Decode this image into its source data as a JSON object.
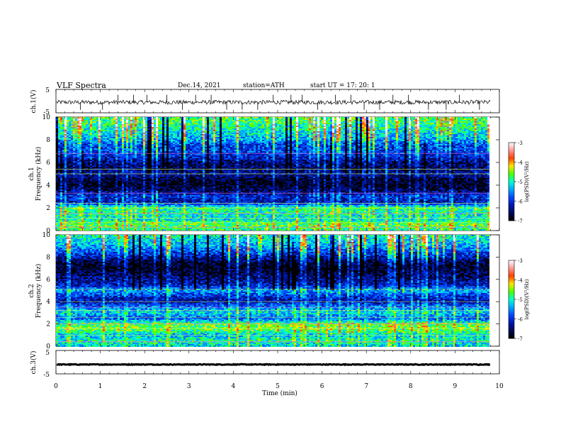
{
  "header": {
    "title": "VLF  Spectra",
    "date": "Dec.14, 2021",
    "station": "station=ATH",
    "start": "start  UT  =    17: 20: 1"
  },
  "colors": {
    "axis": "#000000",
    "trace": "#000000",
    "colormap": [
      "#000000",
      "#000a55",
      "#0016b0",
      "#0047ff",
      "#00a8ff",
      "#00ffd0",
      "#4cff00",
      "#ffe600",
      "#ff4000",
      "#ff9a9a",
      "#ffffff"
    ]
  },
  "chart_data": [
    {
      "type": "line",
      "ylabel": "ch.1(V)",
      "ylim": [
        -5,
        5
      ],
      "ytick_labels": [
        "5",
        "-5"
      ],
      "xlim": [
        0,
        10
      ],
      "baseline_value": -0.5,
      "spike_times_min": [
        0.55,
        1.05,
        1.4,
        1.75,
        2.05,
        2.5,
        2.85,
        3.15,
        3.5,
        3.85,
        4.2,
        4.55,
        4.9,
        5.3,
        5.55,
        5.9,
        6.3,
        6.65,
        6.95,
        7.3,
        7.6,
        7.95,
        8.4,
        8.8,
        9.1,
        9.55
      ]
    },
    {
      "type": "heatmap",
      "ylabel_line1": "ch.1",
      "ylabel_line2": "Frequency  (kHz)",
      "ylim": [
        0,
        10
      ],
      "ytick_labels": [
        "0",
        "2",
        "4",
        "6",
        "8",
        "10"
      ],
      "xlim": [
        0,
        10
      ],
      "data_end_min": 9.8,
      "colorbar_label": "log(PSD)(V²/Hz)",
      "colorbar_ticks": [
        "-3",
        "-4",
        "-5",
        "-6",
        "-7"
      ],
      "colorbar_range": [
        -7,
        -3
      ],
      "frequency_profile_khz": [
        [
          0.0,
          -5.0
        ],
        [
          0.5,
          -4.6
        ],
        [
          1.0,
          -5.2
        ],
        [
          1.5,
          -5.0
        ],
        [
          2.0,
          -4.9
        ],
        [
          2.5,
          -6.3
        ],
        [
          3.0,
          -6.0
        ],
        [
          3.5,
          -6.6
        ],
        [
          4.0,
          -6.9
        ],
        [
          4.5,
          -6.8
        ],
        [
          5.0,
          -6.3
        ],
        [
          5.5,
          -6.6
        ],
        [
          6.0,
          -6.5
        ],
        [
          6.5,
          -6.1
        ],
        [
          7.0,
          -5.8
        ],
        [
          7.5,
          -5.9
        ],
        [
          8.0,
          -5.4
        ],
        [
          9.0,
          -5.0
        ],
        [
          10.0,
          -4.7
        ]
      ],
      "horizontal_lines_khz": [
        0.3,
        0.7,
        1.1,
        1.5,
        2.0,
        2.4,
        3.3,
        5.0,
        5.4,
        6.8
      ]
    },
    {
      "type": "heatmap",
      "ylabel_line1": "ch.2",
      "ylabel_line2": "Frequency  (kHz)",
      "ylim": [
        0,
        10
      ],
      "ytick_labels": [
        "0",
        "2",
        "4",
        "6",
        "8",
        "10"
      ],
      "xlim": [
        0,
        10
      ],
      "data_end_min": 9.8,
      "colorbar_label": "log(PSD)(V²/Hz)",
      "colorbar_ticks": [
        "-3",
        "-4",
        "-5",
        "-6",
        "-7"
      ],
      "colorbar_range": [
        -7,
        -3
      ],
      "frequency_profile_khz": [
        [
          0.0,
          -5.2
        ],
        [
          0.5,
          -5.0
        ],
        [
          1.0,
          -5.3
        ],
        [
          1.5,
          -4.6
        ],
        [
          2.0,
          -4.7
        ],
        [
          2.5,
          -5.8
        ],
        [
          3.0,
          -5.2
        ],
        [
          3.5,
          -5.6
        ],
        [
          4.0,
          -6.3
        ],
        [
          4.5,
          -6.0
        ],
        [
          5.0,
          -5.4
        ],
        [
          5.5,
          -6.2
        ],
        [
          6.0,
          -6.4
        ],
        [
          6.5,
          -6.6
        ],
        [
          7.0,
          -6.9
        ],
        [
          7.5,
          -6.7
        ],
        [
          8.0,
          -6.2
        ],
        [
          9.0,
          -5.4
        ],
        [
          10.0,
          -5.0
        ]
      ],
      "horizontal_lines_khz": [
        0.4,
        1.0,
        1.6,
        2.0,
        2.6,
        3.2,
        3.5,
        4.0,
        5.1
      ]
    },
    {
      "type": "line",
      "ylabel": "ch.3(V)",
      "ylim": [
        -5,
        5
      ],
      "ytick_labels": [
        "5",
        "-5"
      ],
      "xlim": [
        0,
        10
      ],
      "baseline_value": -1.0,
      "xlabel": "Time  (min)",
      "xtick_labels": [
        "0",
        "1",
        "2",
        "3",
        "4",
        "5",
        "6",
        "7",
        "8",
        "9",
        "10"
      ]
    }
  ]
}
